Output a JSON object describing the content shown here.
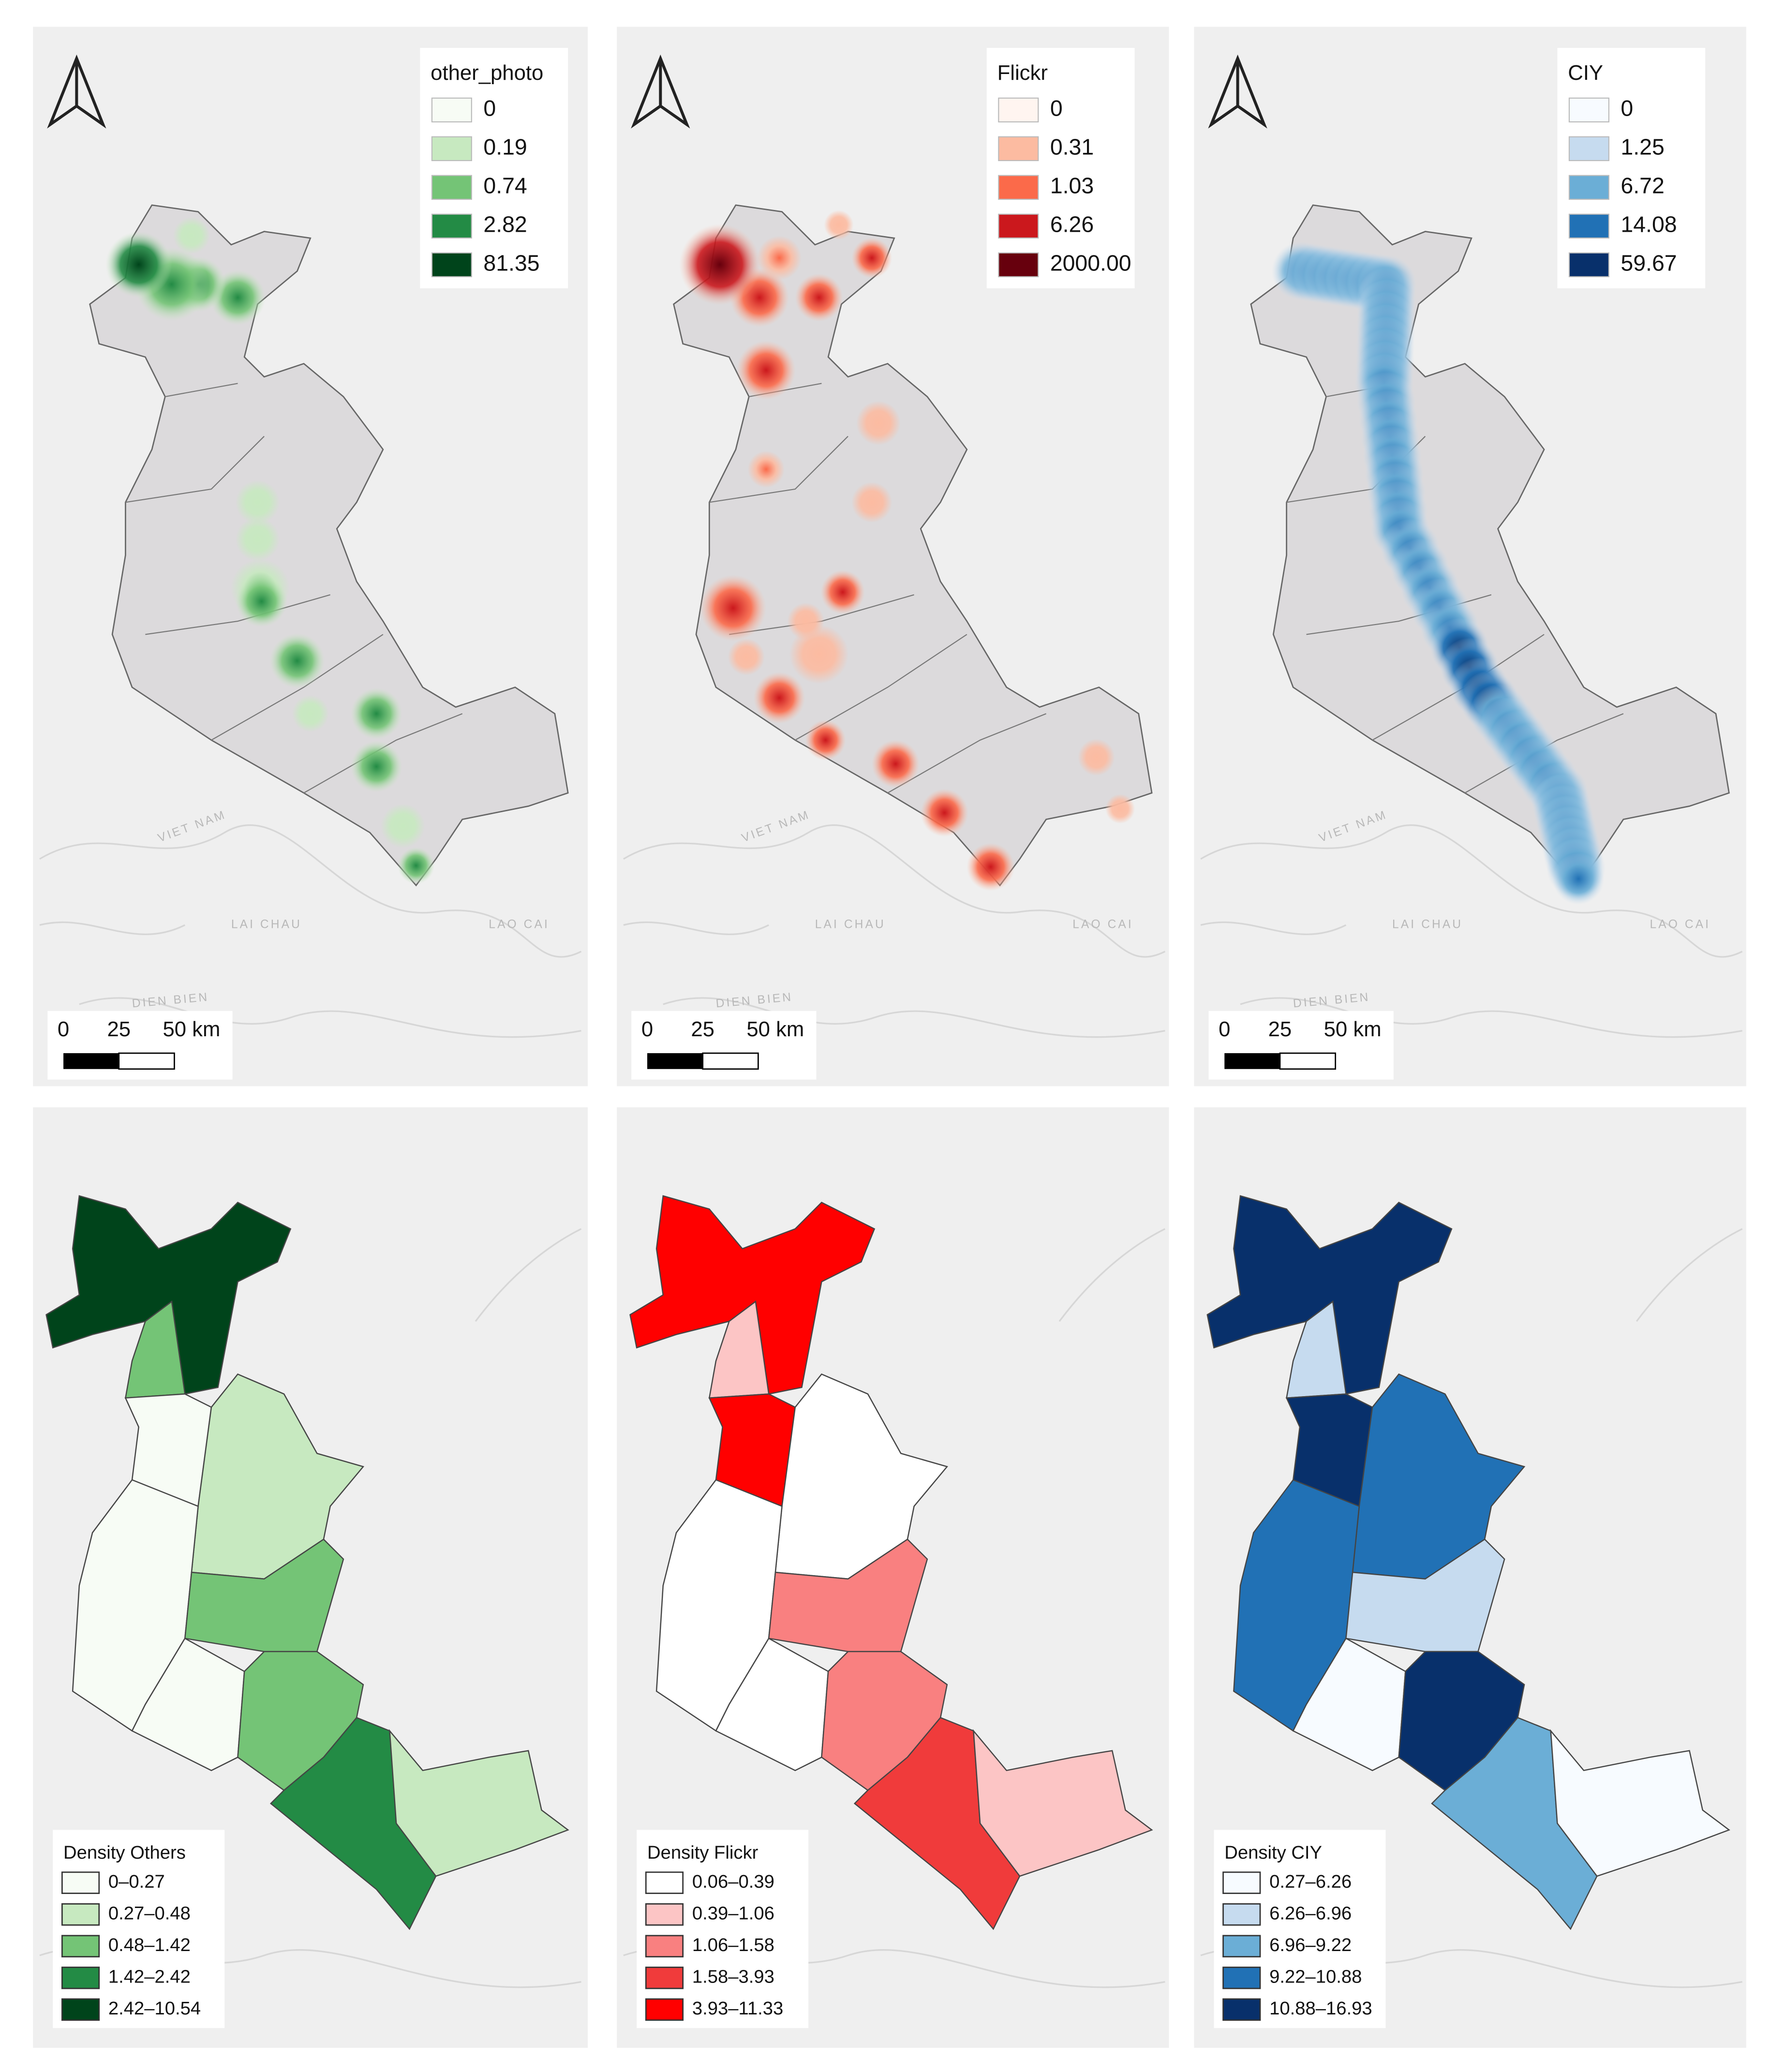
{
  "panels": [
    {
      "heat_legend": {
        "title": "other_photo",
        "labels": [
          "0",
          "0.19",
          "0.74",
          "2.82",
          "81.35"
        ],
        "colors": [
          "#f7fcf5",
          "#c7e9c0",
          "#74c476",
          "#238b45",
          "#00441b"
        ]
      },
      "density_legend": {
        "title": "Density Others",
        "labels": [
          "0–0.27",
          "0.27–0.48",
          "0.48–1.42",
          "1.42–2.42",
          "2.42–10.54"
        ],
        "colors": [
          "#f7fcf5",
          "#c7e9c0",
          "#74c476",
          "#238b45",
          "#00441b"
        ]
      }
    },
    {
      "heat_legend": {
        "title": "Flickr",
        "labels": [
          "0",
          "0.31",
          "1.03",
          "6.26",
          "2000.00"
        ],
        "colors": [
          "#fff5f0",
          "#fcbba1",
          "#fb6a4a",
          "#cb181d",
          "#67000d"
        ]
      },
      "density_legend": {
        "title": "Density Flickr",
        "labels": [
          "0.06–0.39",
          "0.39–1.06",
          "1.06–1.58",
          "1.58–3.93",
          "3.93–11.33"
        ],
        "colors": [
          "#ffffff",
          "#fcc5c5",
          "#f98080",
          "#f03b3b",
          "#ff0000"
        ]
      }
    },
    {
      "heat_legend": {
        "title": "CIY",
        "labels": [
          "0",
          "1.25",
          "6.72",
          "14.08",
          "59.67"
        ],
        "colors": [
          "#f7fbff",
          "#c6dbef",
          "#6baed6",
          "#2171b5",
          "#08306b"
        ]
      },
      "density_legend": {
        "title": "Density CIY",
        "labels": [
          "0.27–6.26",
          "6.26–6.96",
          "6.96–9.22",
          "9.22–10.88",
          "10.88–16.93"
        ],
        "colors": [
          "#f7fbff",
          "#c6dbef",
          "#6baed6",
          "#2171b5",
          "#08306b"
        ]
      }
    }
  ],
  "scale_bar": {
    "labels": [
      "0",
      "25",
      "50 km"
    ]
  },
  "basemap_labels": [
    "VIET NAM",
    "LAI CHAU",
    "LAO CAI",
    "DIEN BIEN"
  ]
}
